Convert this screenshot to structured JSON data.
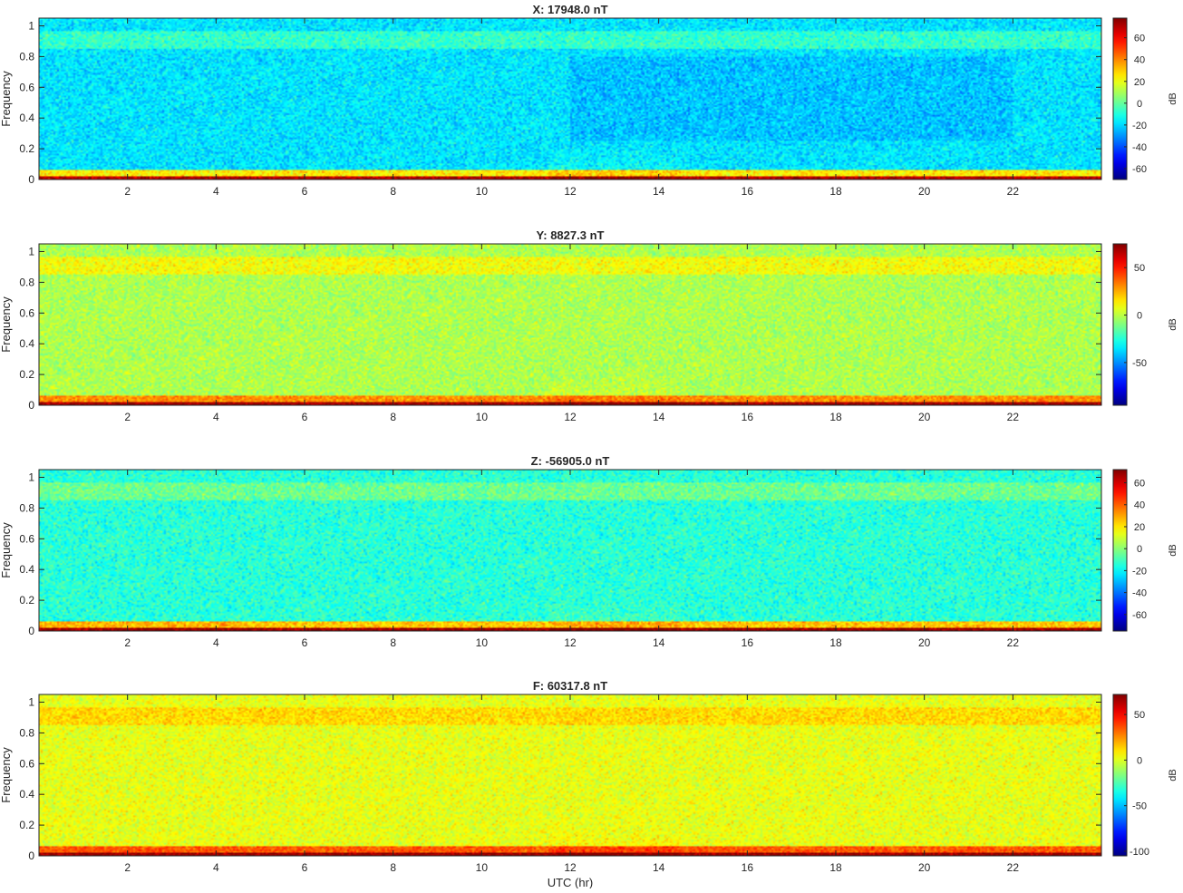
{
  "figure": {
    "xlabel": "UTC (hr)",
    "ylabel": "Frequency",
    "colorbar_label": "dB"
  },
  "chart_data": [
    {
      "type": "heatmap",
      "title": "X: 17948.0 nT",
      "ylabel": "Frequency",
      "xlabel": "",
      "xlim": [
        0,
        24
      ],
      "ylim": [
        0,
        1.05
      ],
      "xticks": [
        2,
        4,
        6,
        8,
        10,
        12,
        14,
        16,
        18,
        20,
        22
      ],
      "xtick_labels": [
        "2",
        "4",
        "6",
        "8",
        "10",
        "12",
        "14",
        "16",
        "18",
        "20",
        "22"
      ],
      "yticks": [
        0,
        0.2,
        0.4,
        0.6,
        0.8,
        1
      ],
      "ytick_labels": [
        "0",
        "0.2",
        "0.4",
        "0.6",
        "0.8",
        "1"
      ],
      "colormap": "jet",
      "clim": [
        -70,
        78
      ],
      "cticks": [
        -60,
        -40,
        -20,
        0,
        20,
        40,
        60
      ],
      "ctick_labels": [
        "-60",
        "-40",
        "-20",
        "0",
        "20",
        "40",
        "60"
      ],
      "colorbar_label": "dB",
      "background_level_db": -18,
      "high_band_level_db": -7,
      "low_band_level_db": 25,
      "dc_level_db": 70
    },
    {
      "type": "heatmap",
      "title": "Y: 8827.3 nT",
      "ylabel": "Frequency",
      "xlabel": "",
      "xlim": [
        0,
        24
      ],
      "ylim": [
        0,
        1.05
      ],
      "xticks": [
        2,
        4,
        6,
        8,
        10,
        12,
        14,
        16,
        18,
        20,
        22
      ],
      "xtick_labels": [
        "2",
        "4",
        "6",
        "8",
        "10",
        "12",
        "14",
        "16",
        "18",
        "20",
        "22"
      ],
      "yticks": [
        0,
        0.2,
        0.4,
        0.6,
        0.8,
        1
      ],
      "ytick_labels": [
        "0",
        "0.2",
        "0.4",
        "0.6",
        "0.8",
        "1"
      ],
      "colormap": "jet",
      "clim": [
        -95,
        75
      ],
      "cticks": [
        -50,
        0,
        50
      ],
      "ctick_labels": [
        "-50",
        "0",
        "50"
      ],
      "colorbar_label": "dB",
      "background_level_db": -2,
      "high_band_level_db": 10,
      "low_band_level_db": 30,
      "dc_level_db": 70
    },
    {
      "type": "heatmap",
      "title": "Z: -56905.0 nT",
      "ylabel": "Frequency",
      "xlabel": "",
      "xlim": [
        0,
        24
      ],
      "ylim": [
        0,
        1.05
      ],
      "xticks": [
        2,
        4,
        6,
        8,
        10,
        12,
        14,
        16,
        18,
        20,
        22
      ],
      "xtick_labels": [
        "2",
        "4",
        "6",
        "8",
        "10",
        "12",
        "14",
        "16",
        "18",
        "20",
        "22"
      ],
      "yticks": [
        0,
        0.2,
        0.4,
        0.6,
        0.8,
        1
      ],
      "ytick_labels": [
        "0",
        "0.2",
        "0.4",
        "0.6",
        "0.8",
        "1"
      ],
      "colormap": "jet",
      "clim": [
        -75,
        72
      ],
      "cticks": [
        -60,
        -40,
        -20,
        0,
        20,
        40,
        60
      ],
      "ctick_labels": [
        "-60",
        "-40",
        "-20",
        "0",
        "20",
        "40",
        "60"
      ],
      "colorbar_label": "dB",
      "background_level_db": -14,
      "high_band_level_db": -4,
      "low_band_level_db": 25,
      "dc_level_db": 68
    },
    {
      "type": "heatmap",
      "title": "F: 60317.8 nT",
      "ylabel": "Frequency",
      "xlabel": "UTC (hr)",
      "xlim": [
        0,
        24
      ],
      "ylim": [
        0,
        1.05
      ],
      "xticks": [
        2,
        4,
        6,
        8,
        10,
        12,
        14,
        16,
        18,
        20,
        22
      ],
      "xtick_labels": [
        "2",
        "4",
        "6",
        "8",
        "10",
        "12",
        "14",
        "16",
        "18",
        "20",
        "22"
      ],
      "yticks": [
        0,
        0.2,
        0.4,
        0.6,
        0.8,
        1
      ],
      "ytick_labels": [
        "0",
        "0.2",
        "0.4",
        "0.6",
        "0.8",
        "1"
      ],
      "colormap": "jet",
      "clim": [
        -105,
        72
      ],
      "cticks": [
        -100,
        -50,
        0,
        50
      ],
      "ctick_labels": [
        "-100",
        "-50",
        "0",
        "50"
      ],
      "colorbar_label": "dB",
      "background_level_db": 2,
      "high_band_level_db": 12,
      "low_band_level_db": 35,
      "dc_level_db": 68
    }
  ]
}
